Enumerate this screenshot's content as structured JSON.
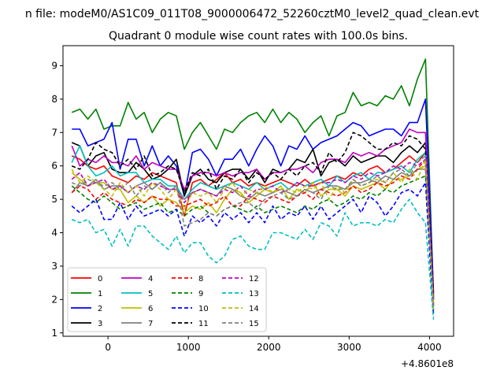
{
  "figure": {
    "suptitle": "n file: modeM0/AS1C09_011T08_9000006472_52260cztM0_level2_quad_clean.evt",
    "offset_text": "+4.8601e8"
  },
  "chart_data": {
    "type": "line",
    "title": "Quadrant 0 module wise count rates with 100.0s bins.",
    "xlabel": "",
    "ylabel": "",
    "xlim": [
      -560,
      4300
    ],
    "ylim": [
      0.9,
      9.6
    ],
    "xticks": [
      0,
      1000,
      2000,
      3000,
      4000
    ],
    "yticks": [
      1,
      2,
      3,
      4,
      5,
      6,
      7,
      8,
      9
    ],
    "grid": false,
    "legend_placement": "lower-left",
    "legend_columns": 4,
    "x": [
      -450,
      -350,
      -250,
      -150,
      -50,
      50,
      150,
      250,
      350,
      450,
      550,
      650,
      750,
      850,
      950,
      1050,
      1150,
      1250,
      1350,
      1450,
      1550,
      1650,
      1750,
      1850,
      1950,
      2050,
      2150,
      2250,
      2350,
      2450,
      2550,
      2650,
      2750,
      2850,
      2950,
      3050,
      3150,
      3250,
      3350,
      3450,
      3550,
      3650,
      3750,
      3850,
      3950,
      4050
    ],
    "series": [
      {
        "name": "0",
        "color": "#ff0000",
        "dash": "solid",
        "values": [
          6.3,
          6.2,
          6.0,
          5.9,
          6.0,
          5.7,
          5.6,
          5.5,
          5.7,
          5.6,
          5.8,
          5.7,
          5.6,
          5.5,
          4.5,
          5.5,
          5.6,
          5.4,
          5.6,
          5.8,
          5.5,
          5.6,
          5.4,
          5.5,
          5.4,
          5.5,
          5.6,
          5.5,
          5.4,
          5.6,
          5.4,
          5.5,
          5.6,
          5.7,
          5.6,
          5.8,
          5.7,
          5.9,
          6.0,
          5.8,
          5.9,
          6.1,
          6.3,
          6.1,
          6.4,
          1.8
        ]
      },
      {
        "name": "1",
        "color": "#008000",
        "dash": "solid",
        "values": [
          7.6,
          7.7,
          7.4,
          7.7,
          7.1,
          7.2,
          7.2,
          7.9,
          7.4,
          7.6,
          7.0,
          7.4,
          7.6,
          7.5,
          6.5,
          7.0,
          7.3,
          6.9,
          6.5,
          7.1,
          7.0,
          7.3,
          7.5,
          7.6,
          7.3,
          7.7,
          7.3,
          7.6,
          7.4,
          7.0,
          7.3,
          7.5,
          6.9,
          7.5,
          7.6,
          8.2,
          7.8,
          7.9,
          7.8,
          8.1,
          8.0,
          8.4,
          7.8,
          8.6,
          9.2,
          2.1
        ]
      },
      {
        "name": "2",
        "color": "#0000ff",
        "dash": "solid",
        "values": [
          7.1,
          7.1,
          6.6,
          6.7,
          6.8,
          7.3,
          5.9,
          6.8,
          6.8,
          6.0,
          6.6,
          6.0,
          6.3,
          6.0,
          5.1,
          6.4,
          6.5,
          6.2,
          5.7,
          6.2,
          6.2,
          6.5,
          6.0,
          6.5,
          6.9,
          6.6,
          6.0,
          6.6,
          6.5,
          6.9,
          6.5,
          6.7,
          6.8,
          6.9,
          7.1,
          7.3,
          7.2,
          6.9,
          7.0,
          7.1,
          7.1,
          6.9,
          7.3,
          7.3,
          8.0,
          2.2
        ]
      },
      {
        "name": "3",
        "color": "#000000",
        "dash": "solid",
        "values": [
          6.7,
          6.6,
          6.0,
          6.3,
          6.4,
          5.9,
          5.8,
          5.8,
          6.1,
          5.9,
          5.6,
          5.7,
          5.9,
          6.2,
          5.1,
          5.7,
          5.9,
          5.6,
          5.5,
          5.8,
          5.9,
          5.9,
          5.6,
          5.9,
          5.5,
          5.9,
          5.8,
          5.9,
          6.2,
          6.1,
          6.5,
          5.7,
          6.1,
          6.2,
          6.0,
          6.3,
          6.1,
          6.2,
          6.3,
          6.3,
          6.1,
          6.4,
          6.6,
          6.4,
          6.7,
          2.0
        ]
      },
      {
        "name": "4",
        "color": "#bf00bf",
        "dash": "solid",
        "values": [
          6.6,
          6.0,
          6.2,
          6.1,
          6.3,
          6.1,
          6.1,
          6.0,
          6.3,
          5.9,
          6.1,
          6.0,
          5.9,
          5.9,
          5.3,
          5.7,
          5.8,
          5.8,
          5.7,
          5.8,
          5.7,
          5.8,
          5.8,
          5.9,
          5.6,
          5.8,
          5.8,
          5.9,
          5.9,
          6.0,
          5.8,
          6.1,
          6.2,
          6.2,
          6.1,
          6.4,
          6.3,
          6.4,
          6.3,
          6.5,
          6.6,
          6.7,
          7.1,
          7.0,
          7.0,
          2.0
        ]
      },
      {
        "name": "5",
        "color": "#00bfbf",
        "dash": "solid",
        "values": [
          6.1,
          6.6,
          6.0,
          5.7,
          5.8,
          6.0,
          5.7,
          5.8,
          5.8,
          5.5,
          5.6,
          5.6,
          5.4,
          5.4,
          5.0,
          5.3,
          5.5,
          5.4,
          5.3,
          5.4,
          5.5,
          5.4,
          5.3,
          5.5,
          5.3,
          5.4,
          5.5,
          5.3,
          5.5,
          5.4,
          5.5,
          5.6,
          5.4,
          5.7,
          5.5,
          5.7,
          5.8,
          5.6,
          5.8,
          5.8,
          5.9,
          6.0,
          5.8,
          6.2,
          6.4,
          1.7
        ]
      },
      {
        "name": "6",
        "color": "#bfbf00",
        "dash": "solid",
        "values": [
          5.8,
          5.6,
          5.4,
          5.5,
          5.5,
          5.3,
          5.3,
          4.9,
          5.1,
          4.9,
          5.1,
          4.8,
          5.0,
          4.9,
          4.6,
          4.8,
          4.7,
          4.9,
          4.6,
          5.0,
          5.3,
          5.2,
          4.9,
          5.1,
          5.3,
          5.2,
          5.4,
          5.0,
          5.3,
          5.2,
          5.5,
          5.1,
          5.3,
          5.3,
          5.1,
          5.4,
          5.3,
          5.4,
          5.5,
          5.3,
          5.6,
          5.6,
          5.7,
          5.9,
          6.0,
          1.8
        ]
      },
      {
        "name": "7",
        "color": "#808080",
        "dash": "solid",
        "values": [
          5.2,
          5.5,
          5.4,
          5.6,
          5.3,
          5.4,
          5.4,
          5.2,
          5.4,
          5.5,
          5.3,
          5.5,
          5.3,
          5.3,
          5.0,
          5.2,
          5.3,
          5.2,
          5.1,
          5.4,
          5.3,
          5.1,
          5.0,
          5.2,
          5.1,
          5.2,
          5.3,
          5.2,
          5.1,
          5.3,
          5.2,
          5.3,
          5.4,
          5.4,
          5.3,
          5.5,
          5.5,
          5.6,
          5.5,
          5.7,
          5.6,
          5.8,
          5.7,
          5.9,
          5.9,
          1.8
        ]
      },
      {
        "name": "8",
        "color": "#ff0000",
        "dash": "dashed",
        "values": [
          5.2,
          5.4,
          5.3,
          5.0,
          5.2,
          5.0,
          4.9,
          4.8,
          5.0,
          4.9,
          5.1,
          5.0,
          5.0,
          4.8,
          4.8,
          4.9,
          5.0,
          4.8,
          4.9,
          5.1,
          4.8,
          4.8,
          5.1,
          5.0,
          4.9,
          5.1,
          5.0,
          4.9,
          5.1,
          5.2,
          5.0,
          5.3,
          5.2,
          5.1,
          5.2,
          5.4,
          5.2,
          5.3,
          5.5,
          5.4,
          5.5,
          5.7,
          5.6,
          5.9,
          6.2,
          1.8
        ]
      },
      {
        "name": "9",
        "color": "#008000",
        "dash": "dashed",
        "values": [
          5.4,
          5.2,
          5.0,
          4.9,
          5.1,
          4.9,
          4.7,
          4.8,
          4.9,
          4.7,
          4.8,
          4.9,
          4.6,
          4.7,
          4.5,
          4.7,
          4.8,
          4.6,
          4.5,
          4.7,
          4.8,
          4.7,
          4.6,
          4.8,
          4.6,
          4.7,
          4.8,
          4.7,
          4.6,
          4.8,
          4.7,
          4.9,
          5.0,
          4.8,
          4.9,
          5.1,
          5.0,
          5.2,
          5.1,
          5.3,
          5.2,
          5.4,
          5.5,
          5.6,
          5.7,
          1.6
        ]
      },
      {
        "name": "10",
        "color": "#0000ff",
        "dash": "dashed",
        "values": [
          4.8,
          4.6,
          4.8,
          5.0,
          4.4,
          4.4,
          4.9,
          4.4,
          4.8,
          4.5,
          4.6,
          4.7,
          4.5,
          4.7,
          3.9,
          4.5,
          4.3,
          4.5,
          4.2,
          4.6,
          4.4,
          4.6,
          4.3,
          4.6,
          4.3,
          4.8,
          4.4,
          4.6,
          4.5,
          4.8,
          4.4,
          4.8,
          4.4,
          4.6,
          4.8,
          5.0,
          4.6,
          5.1,
          4.9,
          4.5,
          4.8,
          5.2,
          5.3,
          5.1,
          5.5,
          1.5
        ]
      },
      {
        "name": "11",
        "color": "#000000",
        "dash": "dashed",
        "values": [
          6.0,
          5.9,
          6.2,
          6.7,
          6.5,
          6.4,
          6.0,
          6.2,
          5.9,
          6.3,
          5.7,
          5.8,
          6.0,
          5.9,
          5.2,
          5.8,
          5.7,
          5.9,
          5.3,
          5.7,
          5.6,
          5.9,
          5.5,
          5.8,
          5.6,
          5.8,
          5.6,
          5.9,
          5.7,
          6.0,
          6.1,
          5.8,
          6.4,
          6.1,
          6.4,
          7.0,
          6.9,
          6.7,
          6.5,
          6.5,
          6.7,
          6.6,
          6.9,
          6.8,
          6.5,
          2.1
        ]
      },
      {
        "name": "12",
        "color": "#bf00bf",
        "dash": "dashed",
        "values": [
          5.6,
          5.8,
          5.4,
          5.5,
          5.6,
          5.3,
          5.4,
          5.2,
          5.4,
          5.3,
          5.5,
          5.4,
          5.3,
          5.3,
          4.9,
          5.2,
          5.3,
          5.2,
          5.1,
          5.3,
          5.2,
          5.4,
          5.1,
          5.3,
          5.3,
          5.4,
          5.2,
          5.3,
          5.5,
          5.4,
          5.4,
          5.5,
          5.5,
          5.6,
          5.5,
          5.7,
          5.6,
          5.8,
          5.7,
          5.8,
          6.0,
          5.9,
          6.1,
          6.0,
          6.2,
          1.9
        ]
      },
      {
        "name": "13",
        "color": "#00bfbf",
        "dash": "dashed",
        "values": [
          4.4,
          4.3,
          4.4,
          4.0,
          4.1,
          3.6,
          4.1,
          3.6,
          4.2,
          4.2,
          3.9,
          3.7,
          3.5,
          3.9,
          3.4,
          3.7,
          3.7,
          3.3,
          3.1,
          3.3,
          3.8,
          3.9,
          3.6,
          3.5,
          3.5,
          4.0,
          4.0,
          3.9,
          3.8,
          4.1,
          3.8,
          4.3,
          4.2,
          3.9,
          4.6,
          4.2,
          4.3,
          4.3,
          4.2,
          4.4,
          4.3,
          4.7,
          5.0,
          4.6,
          4.3,
          1.4
        ]
      },
      {
        "name": "14",
        "color": "#bfbf00",
        "dash": "dashed",
        "values": [
          5.9,
          5.5,
          5.7,
          5.5,
          5.3,
          5.1,
          5.5,
          5.2,
          5.4,
          5.1,
          5.5,
          5.3,
          5.0,
          5.3,
          4.7,
          5.2,
          5.1,
          5.2,
          4.9,
          5.3,
          5.5,
          5.1,
          5.3,
          5.2,
          5.4,
          5.2,
          5.3,
          5.3,
          5.2,
          5.4,
          5.3,
          5.5,
          5.0,
          5.4,
          5.2,
          5.6,
          5.4,
          5.5,
          5.6,
          5.5,
          5.8,
          5.5,
          5.9,
          5.6,
          6.2,
          1.7
        ]
      },
      {
        "name": "15",
        "color": "#808080",
        "dash": "dashed",
        "values": [
          5.5,
          5.4,
          5.6,
          5.5,
          5.4,
          5.5,
          5.3,
          5.5,
          5.1,
          5.4,
          5.3,
          5.5,
          5.2,
          5.4,
          4.2,
          4.3,
          4.4,
          4.6,
          4.5,
          4.7,
          4.8,
          4.9,
          4.9,
          4.7,
          5.0,
          5.1,
          5.2,
          5.0,
          5.1,
          5.3,
          5.2,
          5.0,
          5.4,
          5.3,
          5.3,
          5.6,
          5.4,
          5.5,
          5.7,
          5.5,
          5.8,
          5.9,
          5.7,
          6.1,
          6.3,
          1.7
        ]
      }
    ]
  }
}
